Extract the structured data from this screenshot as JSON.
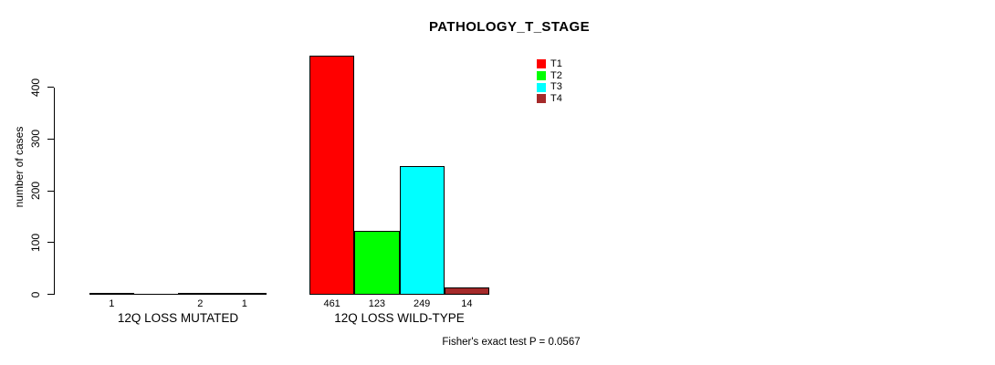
{
  "chart_data": {
    "type": "bar",
    "title": "PATHOLOGY_T_STAGE",
    "ylabel": "number of cases",
    "ylim": [
      0,
      400
    ],
    "yticks": [
      0,
      100,
      200,
      300,
      400
    ],
    "grid": false,
    "legend_position": "top-right-inside",
    "legend": [
      {
        "label": "T1",
        "color": "#FF0000"
      },
      {
        "label": "T2",
        "color": "#00FF00"
      },
      {
        "label": "T3",
        "color": "#00FFFF"
      },
      {
        "label": "T4",
        "color": "#A52A2A"
      }
    ],
    "categories": [
      "T1",
      "T2",
      "T3",
      "T4"
    ],
    "groups": [
      {
        "label": "12Q LOSS MUTATED",
        "values": [
          1,
          0,
          2,
          1
        ],
        "bar_labels": [
          "1",
          "",
          "2",
          "1"
        ]
      },
      {
        "label": "12Q LOSS WILD-TYPE",
        "values": [
          461,
          123,
          249,
          14
        ],
        "bar_labels": [
          "461",
          "123",
          "249",
          "14"
        ]
      }
    ],
    "annotation": "Fisher's exact test P = 0.0567"
  }
}
